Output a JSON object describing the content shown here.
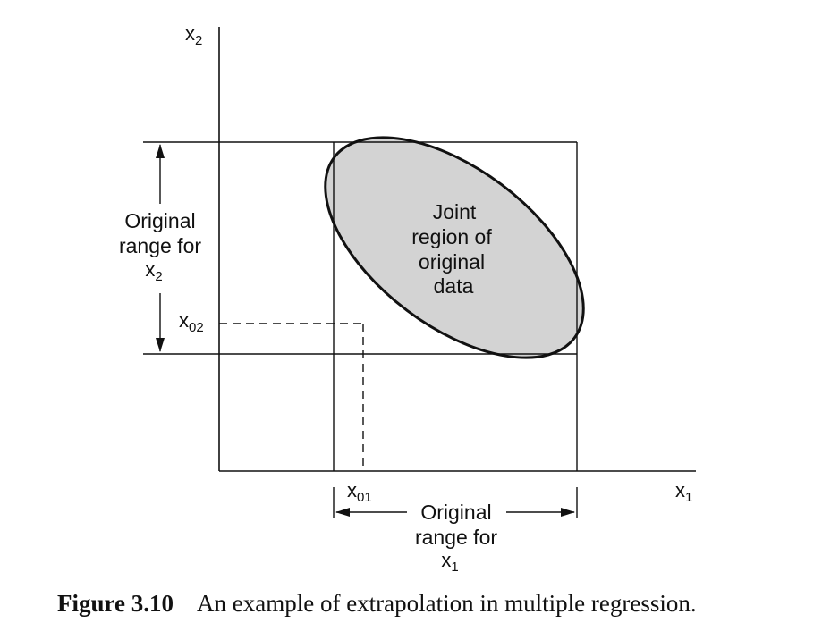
{
  "axes": {
    "x_axis_label": "x",
    "x_axis_subscript": "1",
    "y_axis_label": "x",
    "y_axis_subscript": "2"
  },
  "points": {
    "x01_label": "x",
    "x01_subscript": "01",
    "x02_label": "x",
    "x02_subscript": "02"
  },
  "region": {
    "line1": "Joint",
    "line2": "region of",
    "line3": "original",
    "line4": "data"
  },
  "range_x1": {
    "line1": "Original",
    "line2": "range for",
    "var": "x",
    "var_subscript": "1"
  },
  "range_x2": {
    "line1": "Original",
    "line2": "range for",
    "var": "x",
    "var_subscript": "2"
  },
  "colors": {
    "region_fill": "#d3d3d3",
    "line": "#111111"
  },
  "caption": {
    "number": "Figure 3.10",
    "text": "An example of extrapolation in multiple regression."
  }
}
